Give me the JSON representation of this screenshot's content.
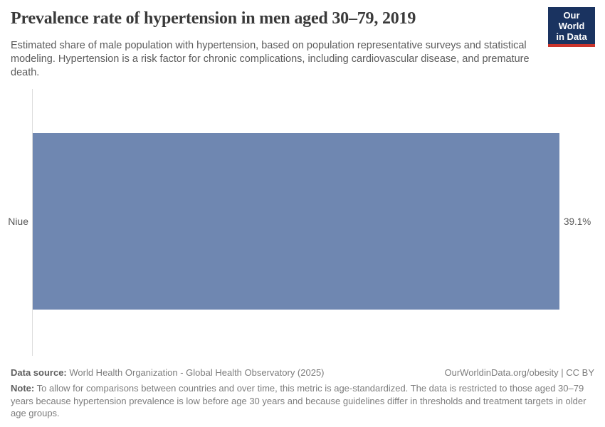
{
  "header": {
    "title": "Prevalence rate of hypertension in men aged 30–79, 2019",
    "subtitle": "Estimated share of male population with hypertension, based on population representative surveys and statistical modeling. Hypertension is a risk factor for chronic complications, including cardiovascular disease, and premature death.",
    "logo": {
      "line1": "Our World",
      "line2": "in Data"
    }
  },
  "chart_data": {
    "type": "bar",
    "orientation": "horizontal",
    "title": "Prevalence rate of hypertension in men aged 30–79, 2019",
    "categories": [
      "Niue"
    ],
    "values": [
      39.1
    ],
    "value_labels": [
      "39.1%"
    ],
    "unit": "%",
    "xlabel": "",
    "ylabel": "",
    "xlim": [
      0,
      39.1
    ],
    "grid": false,
    "legend": "none"
  },
  "footer": {
    "data_source_label": "Data source:",
    "data_source_value": " World Health Organization - Global Health Observatory (2025)",
    "attribution": "OurWorldinData.org/obesity | CC BY",
    "note_label": "Note:",
    "note_value": " To allow for comparisons between countries and over time, this metric is age-standardized. The data is restricted to those aged 30–79 years because hypertension prevalence is low before age 30 years and because guidelines differ in thresholds and treatment targets in older age groups."
  },
  "colors": {
    "bar": "#6f87b1",
    "axis_line": "#dddddd",
    "logo_bg": "#1a3360",
    "logo_red": "#ca342c",
    "title_text": "#3a3a3a",
    "subtitle_text": "#5b5b5b",
    "footer_text": "#7d7d7d"
  }
}
